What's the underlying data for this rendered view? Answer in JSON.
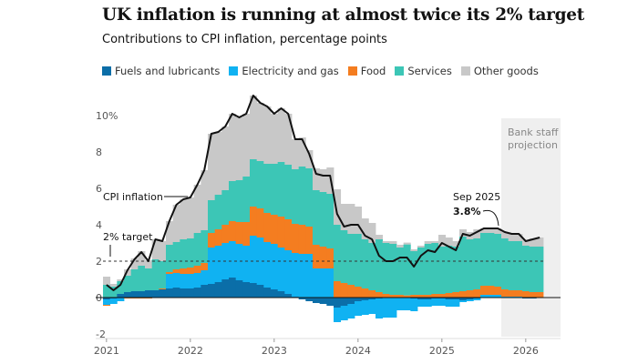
{
  "title": "UK inflation is running at almost twice its 2% target",
  "subtitle": "Contributions to CPI inflation, percentage points",
  "chart_data": {
    "type": "bar",
    "stacked": true,
    "x_start": "Jan 2021",
    "x_end": "Mar 2026",
    "frequency": "monthly",
    "xticks": [
      "2021",
      "2022",
      "2023",
      "2024",
      "2025",
      "2026"
    ],
    "yticks": [
      "10%",
      "8",
      "6",
      "4",
      "2",
      "0",
      "-2"
    ],
    "ylim": [
      -2.5,
      11.5
    ],
    "grid": false,
    "legend_position": "top",
    "series": [
      {
        "name": "Fuels and lubricants",
        "color": "#0b6ea8",
        "values": [
          -0.1,
          -0.05,
          0.2,
          0.3,
          0.35,
          0.35,
          0.4,
          0.4,
          0.45,
          0.5,
          0.55,
          0.5,
          0.5,
          0.55,
          0.7,
          0.75,
          0.85,
          1.0,
          1.1,
          0.95,
          0.85,
          0.8,
          0.7,
          0.55,
          0.45,
          0.35,
          0.2,
          0.05,
          -0.1,
          -0.2,
          -0.3,
          -0.35,
          -0.45,
          -0.55,
          -0.45,
          -0.35,
          -0.2,
          -0.15,
          -0.1,
          -0.05,
          0,
          0,
          0,
          0,
          -0.05,
          -0.1,
          -0.1,
          -0.05,
          -0.05,
          -0.1,
          -0.1,
          -0.15,
          -0.1,
          -0.05,
          0,
          0,
          0,
          0,
          0,
          0,
          -0.05,
          -0.05,
          0
        ]
      },
      {
        "name": "Electricity and gas",
        "color": "#10b2f2",
        "values": [
          -0.3,
          -0.3,
          -0.2,
          0,
          0,
          0,
          0,
          0,
          0,
          0.8,
          0.8,
          0.8,
          0.8,
          0.8,
          0.8,
          2.0,
          2.0,
          2.0,
          2.0,
          2.0,
          2.0,
          2.6,
          2.6,
          2.5,
          2.5,
          2.4,
          2.4,
          2.4,
          2.4,
          2.4,
          1.6,
          1.6,
          1.6,
          -0.8,
          -0.8,
          -0.8,
          -0.8,
          -0.8,
          -0.8,
          -1.1,
          -1.1,
          -1.1,
          -0.7,
          -0.7,
          -0.7,
          -0.4,
          -0.4,
          -0.4,
          -0.4,
          -0.4,
          -0.4,
          -0.1,
          -0.1,
          -0.1,
          0.15,
          0.15,
          0.15,
          0.05,
          0.05,
          0.05,
          0,
          0,
          0
        ]
      },
      {
        "name": "Food",
        "color": "#f47d20",
        "values": [
          -0.05,
          0,
          0,
          -0.05,
          -0.05,
          -0.05,
          -0.05,
          0,
          0.05,
          0.1,
          0.2,
          0.3,
          0.35,
          0.4,
          0.4,
          0.8,
          0.9,
          1.0,
          1.1,
          1.2,
          1.3,
          1.6,
          1.6,
          1.6,
          1.6,
          1.7,
          1.7,
          1.6,
          1.6,
          1.5,
          1.3,
          1.2,
          1.1,
          0.9,
          0.8,
          0.7,
          0.6,
          0.5,
          0.4,
          0.3,
          0.2,
          0.15,
          0.15,
          0.12,
          0.15,
          0.15,
          0.15,
          0.2,
          0.2,
          0.25,
          0.3,
          0.35,
          0.4,
          0.45,
          0.5,
          0.5,
          0.45,
          0.4,
          0.35,
          0.35,
          0.35,
          0.3,
          0.3
        ]
      },
      {
        "name": "Services",
        "color": "#3cc6b6",
        "values": [
          0.7,
          0.6,
          0.7,
          0.9,
          1.2,
          1.4,
          1.2,
          1.7,
          1.5,
          1.5,
          1.5,
          1.6,
          1.6,
          1.8,
          1.8,
          1.8,
          1.9,
          1.9,
          2.2,
          2.3,
          2.5,
          2.6,
          2.6,
          2.7,
          2.8,
          3.0,
          3.0,
          3.0,
          3.2,
          3.2,
          3.0,
          3.0,
          3.0,
          3.1,
          2.9,
          2.8,
          2.9,
          2.7,
          2.6,
          2.9,
          2.8,
          2.8,
          2.6,
          2.8,
          2.4,
          2.6,
          2.8,
          2.8,
          2.6,
          2.6,
          2.5,
          3.0,
          2.8,
          2.8,
          2.9,
          2.9,
          2.9,
          2.8,
          2.7,
          2.7,
          2.5,
          2.5,
          2.5
        ]
      },
      {
        "name": "Other goods",
        "color": "#c8c8c8",
        "values": [
          0.45,
          0.15,
          0.1,
          0.35,
          0.6,
          0.8,
          0.45,
          1.1,
          1.1,
          1.3,
          2.05,
          2.2,
          2.25,
          2.65,
          3.3,
          3.65,
          3.45,
          3.5,
          3.7,
          3.45,
          3.45,
          3.5,
          3.2,
          3.15,
          2.75,
          2.95,
          2.8,
          1.65,
          1.6,
          1.0,
          1.2,
          1.25,
          1.45,
          1.95,
          1.45,
          1.65,
          1.5,
          1.15,
          1.1,
          0.25,
          0.1,
          0.15,
          0.15,
          0.1,
          0.1,
          0.1,
          0.15,
          0.1,
          0.65,
          0.45,
          0.3,
          0.4,
          0.4,
          0.5,
          0.25,
          0.25,
          0.3,
          0.35,
          0.4,
          0.4,
          0.3,
          0.45,
          0.5
        ]
      }
    ],
    "line": {
      "name": "CPI inflation",
      "color": "#121212",
      "values": [
        0.7,
        0.4,
        0.7,
        1.5,
        2.1,
        2.5,
        2.0,
        3.2,
        3.1,
        4.2,
        5.1,
        5.4,
        5.5,
        6.2,
        7.0,
        9.0,
        9.1,
        9.4,
        10.1,
        9.9,
        10.1,
        11.1,
        10.7,
        10.5,
        10.1,
        10.4,
        10.1,
        8.7,
        8.7,
        7.9,
        6.8,
        6.7,
        6.7,
        4.6,
        3.9,
        4.0,
        4.0,
        3.4,
        3.2,
        2.3,
        2.0,
        2.0,
        2.2,
        2.2,
        1.7,
        2.3,
        2.6,
        2.5,
        3.0,
        2.8,
        2.6,
        3.5,
        3.4,
        3.6,
        3.8,
        3.8,
        3.8,
        3.6,
        3.5,
        3.5,
        3.1,
        3.2,
        3.3
      ]
    },
    "target": {
      "value": 2,
      "label": "2% target"
    },
    "projection": {
      "start": "Oct 2025",
      "label": "Bank staff projection",
      "color": "#efefef"
    },
    "annotations": {
      "line_label": "CPI inflation",
      "callout_date": "Sep 2025",
      "callout_value": "3.8%"
    }
  }
}
